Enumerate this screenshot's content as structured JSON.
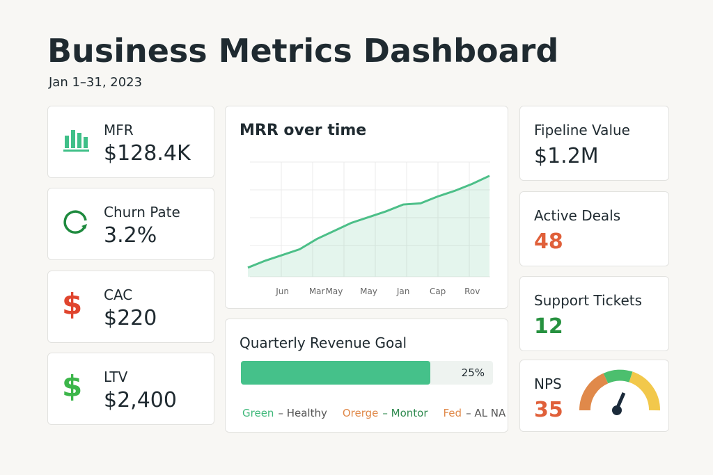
{
  "header": {
    "title": "Business  Metrics Dashboard",
    "date": "Jan 1–31, 2023"
  },
  "left_cards": [
    {
      "label": "MFR",
      "value": "$128.4K"
    },
    {
      "label": "Churn Pate",
      "value": "3.2%"
    },
    {
      "label": "CAC",
      "value": "$220"
    },
    {
      "label": "LTV",
      "value": "$2,400"
    }
  ],
  "right_cards": [
    {
      "label": "Fipeline Value",
      "value": "$1.2M"
    },
    {
      "label": "Active Deals",
      "value": "48"
    },
    {
      "label": "Support Tickets",
      "value": "12"
    },
    {
      "label": "NPS",
      "value": "35"
    }
  ],
  "chart_data": {
    "type": "area",
    "title": "MRR over time",
    "color": "#4cbf88",
    "categories": [
      null,
      null,
      "Jun",
      null,
      "Mar",
      "May",
      null,
      "May",
      null,
      "Jan",
      null,
      "Cap",
      null,
      "Rov",
      null
    ],
    "values": [
      8,
      14,
      19,
      24,
      33,
      40,
      47,
      52,
      57,
      63,
      64,
      70,
      75,
      81,
      88
    ],
    "ylim": [
      0,
      100
    ]
  },
  "goal": {
    "title": "Quarterly Revenue Goal",
    "label": "25%",
    "fill": 75,
    "legend": [
      [
        "Green",
        "– Healthy"
      ],
      [
        "Orerge",
        "– Montor"
      ],
      [
        "Fed",
        "– AL NA"
      ]
    ]
  }
}
